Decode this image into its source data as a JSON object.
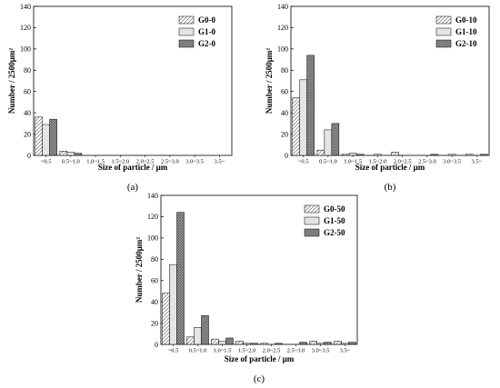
{
  "chart_data": [
    {
      "type": "bar",
      "panel_label": "(a)",
      "xlabel": "Size of particle / μm",
      "ylabel": "Number / 2500μm²",
      "ylim": [
        0,
        140
      ],
      "yticks": [
        "0",
        "20",
        "40",
        "60",
        "80",
        "100",
        "120",
        "140"
      ],
      "categories": [
        "~0.5",
        "0.5~1.0",
        "1.0~1.5",
        "1.5~2.0",
        "2.0~2.5",
        "2.5~3.0",
        "3.0~3.5",
        "3.5~"
      ],
      "legend_position": "top-right",
      "series": [
        {
          "name": "G0-0",
          "pattern": "diag-light",
          "values": [
            36,
            4,
            0,
            0,
            0,
            0,
            0,
            0
          ]
        },
        {
          "name": "G1-0",
          "pattern": "light",
          "values": [
            29,
            3,
            0,
            0,
            0,
            0,
            0,
            0
          ]
        },
        {
          "name": "G2-0",
          "pattern": "dark",
          "values": [
            34,
            2,
            0,
            0,
            0,
            0,
            0,
            0
          ]
        }
      ]
    },
    {
      "type": "bar",
      "panel_label": "(b)",
      "xlabel": "Size of particle / μm",
      "ylabel": "Number / 2500μm²",
      "ylim": [
        0,
        140
      ],
      "yticks": [
        "0",
        "20",
        "40",
        "60",
        "80",
        "100",
        "120",
        "140"
      ],
      "categories": [
        "~0.5",
        "0.5~1.0",
        "1.0~1.5",
        "1.5~2.0",
        "2.0~2.5",
        "2.5~3.0",
        "3.0~3.5",
        "3.5~"
      ],
      "legend_position": "top-right",
      "series": [
        {
          "name": "G0-10",
          "pattern": "diag-light",
          "values": [
            54,
            5,
            1,
            0,
            3,
            0,
            0,
            1
          ]
        },
        {
          "name": "G1-10",
          "pattern": "light",
          "values": [
            71,
            24,
            2,
            1,
            0,
            0,
            1,
            0
          ]
        },
        {
          "name": "G2-10",
          "pattern": "dark",
          "values": [
            94,
            30,
            1,
            0,
            0,
            1,
            0,
            1
          ]
        }
      ]
    },
    {
      "type": "bar",
      "panel_label": "(c)",
      "xlabel": "Size of particle / μm",
      "ylabel": "Number / 2500μm²",
      "ylim": [
        0,
        140
      ],
      "yticks": [
        "0",
        "20",
        "40",
        "60",
        "80",
        "100",
        "120",
        "140"
      ],
      "categories": [
        "~0.5",
        "0.5~1.0",
        "1.0~1.5",
        "1.5~2.0",
        "2.0~2.5",
        "2.5~3.0",
        "3.0~3.5",
        "3.5~"
      ],
      "legend_position": "top-right",
      "series": [
        {
          "name": "G0-50",
          "pattern": "diag-light",
          "values": [
            48,
            7,
            5,
            3,
            1,
            0,
            3,
            3
          ]
        },
        {
          "name": "G1-50",
          "pattern": "light",
          "values": [
            75,
            16,
            3,
            1,
            0,
            0,
            1,
            1
          ]
        },
        {
          "name": "G2-50",
          "pattern": "dark",
          "values": [
            124,
            27,
            6,
            1,
            1,
            2,
            2,
            2
          ]
        }
      ]
    }
  ]
}
